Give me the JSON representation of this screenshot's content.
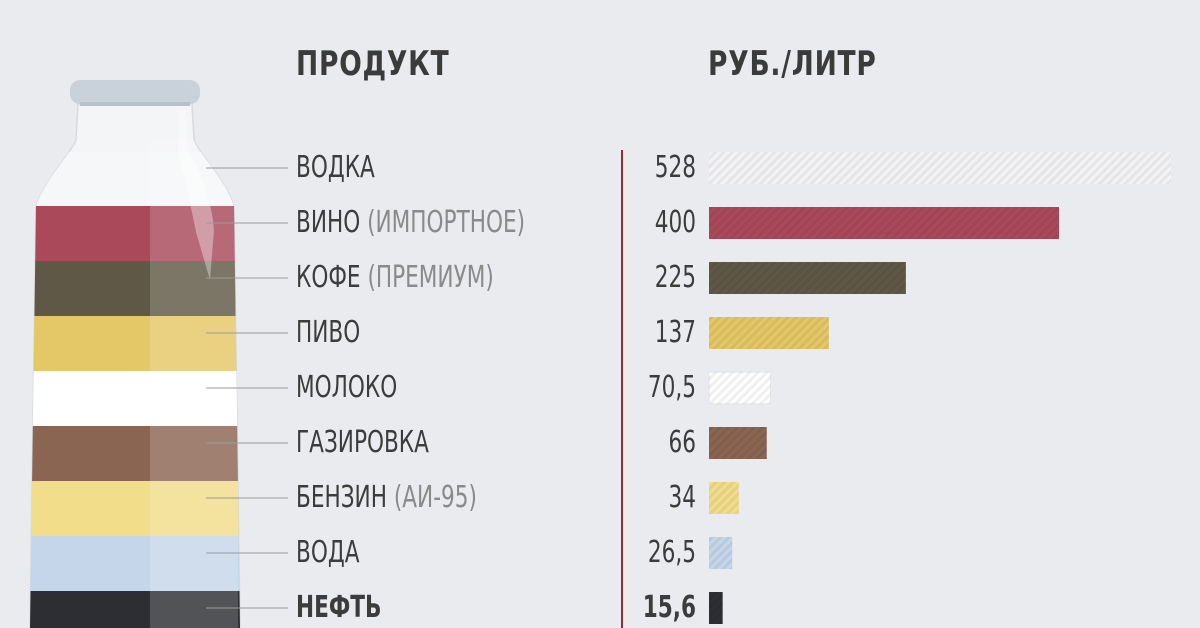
{
  "headers": {
    "product": "ПРОДУКТ",
    "price": "РУБ./ЛИТР"
  },
  "chart_data": {
    "type": "bar",
    "orientation": "horizontal",
    "title": "",
    "xlabel": "РУБ./ЛИТР",
    "ylabel": "ПРОДУКТ",
    "categories": [
      "ВОДКА",
      "ВИНО (ИМПОРТНОЕ)",
      "КОФЕ (ПРЕМИУМ)",
      "ПИВО",
      "МОЛОКО",
      "ГАЗИРОВКА",
      "БЕНЗИН (АИ-95)",
      "ВОДА",
      "НЕФТЬ"
    ],
    "values": [
      528,
      400,
      225,
      137,
      70.5,
      66,
      34,
      26.5,
      15.6
    ],
    "xlim": [
      0,
      528
    ],
    "grid": false,
    "rows": [
      {
        "main": "ВОДКА",
        "sub": "",
        "value_label": "528",
        "value": 528,
        "color": "#f3f3f5",
        "bold": false
      },
      {
        "main": "ВИНО ",
        "sub": "(ИМПОРТНОЕ)",
        "value_label": "400",
        "value": 400,
        "color": "#a9495a",
        "bold": false
      },
      {
        "main": "КОФЕ ",
        "sub": "(ПРЕМИУМ)",
        "value_label": "225",
        "value": 225,
        "color": "#605846",
        "bold": false
      },
      {
        "main": "ПИВО",
        "sub": "",
        "value_label": "137",
        "value": 137,
        "color": "#e4c766",
        "bold": false
      },
      {
        "main": "МОЛОКО",
        "sub": "",
        "value_label": "70,5",
        "value": 70.5,
        "color": "#ffffff",
        "bold": false
      },
      {
        "main": "ГАЗИРОВКА",
        "sub": "",
        "value_label": "66",
        "value": 66,
        "color": "#8a6552",
        "bold": false
      },
      {
        "main": "БЕНЗИН ",
        "sub": "(АИ-95)",
        "value_label": "34",
        "value": 34,
        "color": "#f1dd8a",
        "bold": false
      },
      {
        "main": "ВОДА",
        "sub": "",
        "value_label": "26,5",
        "value": 26.5,
        "color": "#c5d6ea",
        "bold": false
      },
      {
        "main": "НЕФТЬ",
        "sub": "",
        "value_label": "15,6",
        "value": 15.6,
        "color": "#2c2e33",
        "bold": true
      }
    ]
  },
  "colors": {
    "background": "#e9ebee",
    "axis_line": "#8f2d3a",
    "leader_line": "#9a9a9a",
    "bottle_cap": "#c9d2da",
    "bottle_glass": "#f4f5f7"
  }
}
